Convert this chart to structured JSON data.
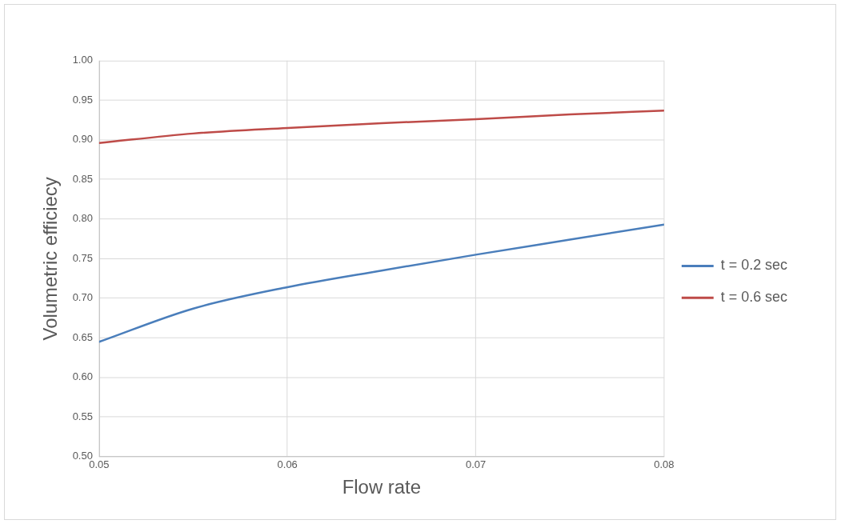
{
  "chart_data": {
    "type": "line",
    "xlabel": "Flow rate",
    "ylabel": "Volumetric efficiecy",
    "x": [
      0.05,
      0.055,
      0.06,
      0.065,
      0.07,
      0.075,
      0.08
    ],
    "series": [
      {
        "name": "t = 0.2 sec",
        "color": "#4a7ebb",
        "values": [
          0.645,
          0.687,
          0.714,
          0.735,
          0.755,
          0.774,
          0.793
        ]
      },
      {
        "name": "t = 0.6 sec",
        "color": "#be4b48",
        "values": [
          0.896,
          0.908,
          0.915,
          0.921,
          0.926,
          0.932,
          0.937
        ]
      }
    ],
    "xlim": [
      0.05,
      0.08
    ],
    "xticks": [
      0.05,
      0.06,
      0.07,
      0.08
    ],
    "ylim": [
      0.5,
      1.0
    ],
    "yticks": [
      {
        "value": 0.5,
        "label": "0.50"
      },
      0.55,
      {
        "value": 0.6,
        "label": "0.60"
      },
      0.65,
      {
        "value": 0.7,
        "label": "0.70"
      },
      0.75,
      {
        "value": 0.8,
        "label": "0.80"
      },
      0.85,
      {
        "value": 0.9,
        "label": "0.90"
      },
      0.95,
      {
        "value": 1.0,
        "label": "1.00"
      }
    ],
    "grid": true,
    "legend": "right",
    "marker": "none",
    "line_style": "solid"
  }
}
